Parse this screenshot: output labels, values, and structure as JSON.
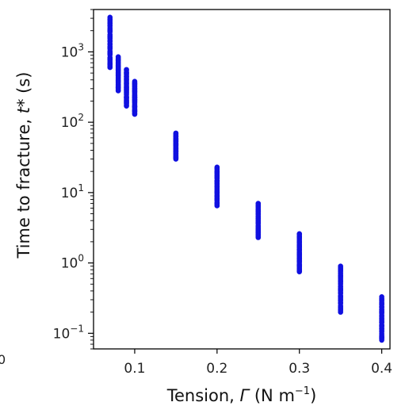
{
  "chart_data": {
    "type": "scatter",
    "xlabel": {
      "prefix": "Tension, ",
      "symbol": "Γ",
      "unit_open": " (N m",
      "unit_sup": "−1",
      "unit_close": ")"
    },
    "ylabel": {
      "prefix": "Time to fracture, ",
      "symbol": "t",
      "unit": "* (s)"
    },
    "xlim": [
      0.05,
      0.41
    ],
    "ylim": [
      0.06,
      4000
    ],
    "y_scale": "log",
    "x_ticks": [
      {
        "value": 0.1,
        "label": "0.1"
      },
      {
        "value": 0.2,
        "label": "0.2"
      },
      {
        "value": 0.3,
        "label": "0.3"
      },
      {
        "value": 0.4,
        "label": "0.4"
      }
    ],
    "y_ticks": [
      {
        "value": 1000,
        "base": "10",
        "exp": "3"
      },
      {
        "value": 100,
        "base": "10",
        "exp": "2"
      },
      {
        "value": 10,
        "base": "10",
        "exp": "1"
      },
      {
        "value": 1,
        "base": "10",
        "exp": "0"
      },
      {
        "value": 0.1,
        "base": "10",
        "exp": "−1"
      }
    ],
    "marker_color": "#1010e0",
    "grid": false,
    "edge_fragment": "0",
    "groups": [
      {
        "tension": 0.07,
        "t_min": 600,
        "t_max": 3100
      },
      {
        "tension": 0.08,
        "t_min": 280,
        "t_max": 850
      },
      {
        "tension": 0.09,
        "t_min": 170,
        "t_max": 560
      },
      {
        "tension": 0.1,
        "t_min": 130,
        "t_max": 380
      },
      {
        "tension": 0.15,
        "t_min": 30,
        "t_max": 70
      },
      {
        "tension": 0.2,
        "t_min": 6.5,
        "t_max": 23
      },
      {
        "tension": 0.25,
        "t_min": 2.3,
        "t_max": 7
      },
      {
        "tension": 0.3,
        "t_min": 0.75,
        "t_max": 2.6
      },
      {
        "tension": 0.35,
        "t_min": 0.2,
        "t_max": 0.9
      },
      {
        "tension": 0.4,
        "t_min": 0.08,
        "t_max": 0.33
      }
    ]
  }
}
